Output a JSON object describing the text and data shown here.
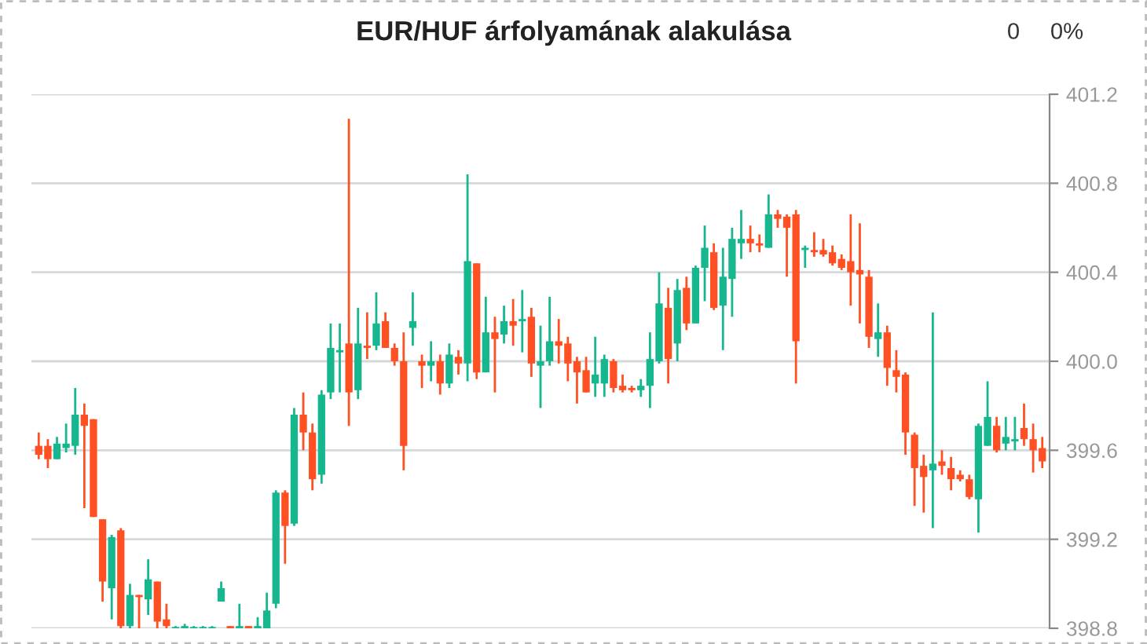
{
  "chart_data": {
    "type": "candlestick",
    "title": "EUR/HUF árfolyamának alakulása",
    "annotations": [
      "0",
      "0%"
    ],
    "categories": [
      null,
      null,
      null,
      null,
      null,
      null,
      null,
      null,
      null,
      null,
      null,
      null,
      null,
      null,
      null,
      null,
      null,
      null,
      null,
      null,
      null,
      null,
      null,
      null,
      null,
      null,
      null,
      null,
      null,
      null,
      null,
      null,
      null,
      null,
      null,
      null,
      null,
      null,
      null,
      null,
      null,
      null,
      null,
      null,
      null,
      null,
      null,
      null,
      null,
      null,
      null,
      null,
      null,
      null,
      null,
      null,
      null,
      null,
      null,
      null,
      null,
      null,
      null,
      null,
      null,
      null,
      null,
      null,
      null,
      null,
      null,
      null,
      null,
      null,
      null,
      null,
      null,
      null,
      null,
      null,
      null,
      null,
      null,
      null,
      null,
      null,
      null,
      null,
      null,
      null,
      null,
      null,
      null,
      null,
      null,
      null,
      null,
      null,
      null,
      null,
      null,
      null,
      null,
      null,
      null,
      null,
      null,
      null,
      null,
      null,
      null
    ],
    "ohlc": [
      [
        399.62,
        399.68,
        399.56,
        399.58
      ],
      [
        399.62,
        399.65,
        399.52,
        399.56
      ],
      [
        399.56,
        399.66,
        399.56,
        399.63
      ],
      [
        399.61,
        399.72,
        399.59,
        399.63
      ],
      [
        399.62,
        399.88,
        399.58,
        399.76
      ],
      [
        399.76,
        399.81,
        399.34,
        399.71
      ],
      [
        399.74,
        399.74,
        399.3,
        399.3
      ],
      [
        399.29,
        399.29,
        398.92,
        399.01
      ],
      [
        398.98,
        399.22,
        398.84,
        399.21
      ],
      [
        399.24,
        399.25,
        398.8,
        398.81
      ],
      [
        398.81,
        399.0,
        398.8,
        398.95
      ],
      [
        398.95,
        398.95,
        398.8,
        398.94
      ],
      [
        398.93,
        399.11,
        398.86,
        399.02
      ],
      [
        399.01,
        399.01,
        398.8,
        398.83
      ],
      [
        398.84,
        398.91,
        398.8,
        398.81
      ],
      [
        398.8,
        398.81,
        398.8,
        398.8
      ],
      [
        398.8,
        398.82,
        398.8,
        398.81
      ],
      [
        398.8,
        398.81,
        398.8,
        398.8
      ],
      [
        398.8,
        398.81,
        398.8,
        398.8
      ],
      [
        398.8,
        398.81,
        398.8,
        398.8
      ],
      [
        398.92,
        399.01,
        398.92,
        398.98
      ],
      [
        398.81,
        398.81,
        398.8,
        398.8
      ],
      [
        398.8,
        398.91,
        398.8,
        398.81
      ],
      [
        398.81,
        398.81,
        398.8,
        398.8
      ],
      [
        398.8,
        398.85,
        398.8,
        398.81
      ],
      [
        398.8,
        398.96,
        398.8,
        398.88
      ],
      [
        398.91,
        399.42,
        398.89,
        399.41
      ],
      [
        399.41,
        399.42,
        399.09,
        399.26
      ],
      [
        399.27,
        399.79,
        399.26,
        399.76
      ],
      [
        399.76,
        399.86,
        399.6,
        399.68
      ],
      [
        399.68,
        399.72,
        399.42,
        399.47
      ],
      [
        399.49,
        399.87,
        399.45,
        399.85
      ],
      [
        399.86,
        400.17,
        399.83,
        400.06
      ],
      [
        400.04,
        400.17,
        399.86,
        400.05
      ],
      [
        400.08,
        401.09,
        399.71,
        399.86
      ],
      [
        399.87,
        400.24,
        399.83,
        400.08
      ],
      [
        400.07,
        400.22,
        400.01,
        400.06
      ],
      [
        400.07,
        400.31,
        400.05,
        400.17
      ],
      [
        400.18,
        400.22,
        400.06,
        400.06
      ],
      [
        400.06,
        400.08,
        399.98,
        400.0
      ],
      [
        400.0,
        400.13,
        399.51,
        399.62
      ],
      [
        400.15,
        400.31,
        400.07,
        400.18
      ],
      [
        400.0,
        400.03,
        399.88,
        399.98
      ],
      [
        399.98,
        400.09,
        399.91,
        400.0
      ],
      [
        400.0,
        400.03,
        399.85,
        399.9
      ],
      [
        399.9,
        400.08,
        399.88,
        400.03
      ],
      [
        400.02,
        400.05,
        399.94,
        399.99
      ],
      [
        399.99,
        400.84,
        399.91,
        400.45
      ],
      [
        400.44,
        400.44,
        399.92,
        399.95
      ],
      [
        399.95,
        400.29,
        399.95,
        400.13
      ],
      [
        400.13,
        400.2,
        399.86,
        400.1
      ],
      [
        400.12,
        400.25,
        400.08,
        400.18
      ],
      [
        400.18,
        400.28,
        400.07,
        400.16
      ],
      [
        400.18,
        400.32,
        400.04,
        400.19
      ],
      [
        400.2,
        400.24,
        399.93,
        399.99
      ],
      [
        399.98,
        400.16,
        399.79,
        400.0
      ],
      [
        400.0,
        400.29,
        399.98,
        400.09
      ],
      [
        400.09,
        400.19,
        399.99,
        400.07
      ],
      [
        400.08,
        400.11,
        399.91,
        399.99
      ],
      [
        400.0,
        400.02,
        399.81,
        399.95
      ],
      [
        399.96,
        400.02,
        399.86,
        399.86
      ],
      [
        399.9,
        400.11,
        399.84,
        399.94
      ],
      [
        399.9,
        400.03,
        399.84,
        400.01
      ],
      [
        400.0,
        400.01,
        399.86,
        399.88
      ],
      [
        399.89,
        399.94,
        399.86,
        399.87
      ],
      [
        399.88,
        399.89,
        399.86,
        399.87
      ],
      [
        399.87,
        399.92,
        399.84,
        399.89
      ],
      [
        399.89,
        400.13,
        399.79,
        400.01
      ],
      [
        400.0,
        400.4,
        399.99,
        400.26
      ],
      [
        400.24,
        400.33,
        399.9,
        400.01
      ],
      [
        400.08,
        400.37,
        400.0,
        400.32
      ],
      [
        400.33,
        400.38,
        400.14,
        400.17
      ],
      [
        400.17,
        400.43,
        400.17,
        400.42
      ],
      [
        400.42,
        400.61,
        400.27,
        400.51
      ],
      [
        400.49,
        400.53,
        400.23,
        400.24
      ],
      [
        400.25,
        400.51,
        400.05,
        400.38
      ],
      [
        400.37,
        400.6,
        400.2,
        400.55
      ],
      [
        400.53,
        400.68,
        400.46,
        400.55
      ],
      [
        400.55,
        400.61,
        400.49,
        400.53
      ],
      [
        400.53,
        400.57,
        400.49,
        400.52
      ],
      [
        400.51,
        400.75,
        400.51,
        400.66
      ],
      [
        400.66,
        400.68,
        400.6,
        400.64
      ],
      [
        400.65,
        400.66,
        400.38,
        400.6
      ],
      [
        400.66,
        400.68,
        399.9,
        400.09
      ],
      [
        400.5,
        400.52,
        400.42,
        400.51
      ],
      [
        400.5,
        400.58,
        400.47,
        400.49
      ],
      [
        400.5,
        400.55,
        400.47,
        400.48
      ],
      [
        400.49,
        400.52,
        400.43,
        400.44
      ],
      [
        400.46,
        400.48,
        400.41,
        400.42
      ],
      [
        400.45,
        400.66,
        400.25,
        400.4
      ],
      [
        400.41,
        400.62,
        400.17,
        400.39
      ],
      [
        400.38,
        400.41,
        400.06,
        400.11
      ],
      [
        400.1,
        400.26,
        400.02,
        400.13
      ],
      [
        400.13,
        400.16,
        399.89,
        399.97
      ],
      [
        399.96,
        400.05,
        399.86,
        399.93
      ],
      [
        399.94,
        399.95,
        399.58,
        399.68
      ],
      [
        399.67,
        399.68,
        399.35,
        399.52
      ],
      [
        399.53,
        399.58,
        399.32,
        399.48
      ],
      [
        399.51,
        400.22,
        399.25,
        399.54
      ],
      [
        399.55,
        399.6,
        399.49,
        399.53
      ],
      [
        399.52,
        399.57,
        399.42,
        399.47
      ],
      [
        399.49,
        399.51,
        399.46,
        399.47
      ],
      [
        399.47,
        399.49,
        399.38,
        399.39
      ],
      [
        399.38,
        399.72,
        399.23,
        399.71
      ],
      [
        399.62,
        399.91,
        399.62,
        399.75
      ],
      [
        399.71,
        399.75,
        399.59,
        399.6
      ],
      [
        399.63,
        399.75,
        399.6,
        399.66
      ],
      [
        399.64,
        399.75,
        399.6,
        399.65
      ],
      [
        399.7,
        399.81,
        399.62,
        399.65
      ],
      [
        399.65,
        399.72,
        399.5,
        399.6
      ],
      [
        399.61,
        399.66,
        399.52,
        399.55
      ]
    ],
    "ylim": [
      398.8,
      401.2
    ],
    "yticks": [
      398.8,
      399.2,
      399.6,
      {
        "value": 400.0,
        "label": "400.0"
      },
      400.4,
      400.8,
      401.2
    ],
    "grid": "y",
    "tick_labels": "y"
  }
}
